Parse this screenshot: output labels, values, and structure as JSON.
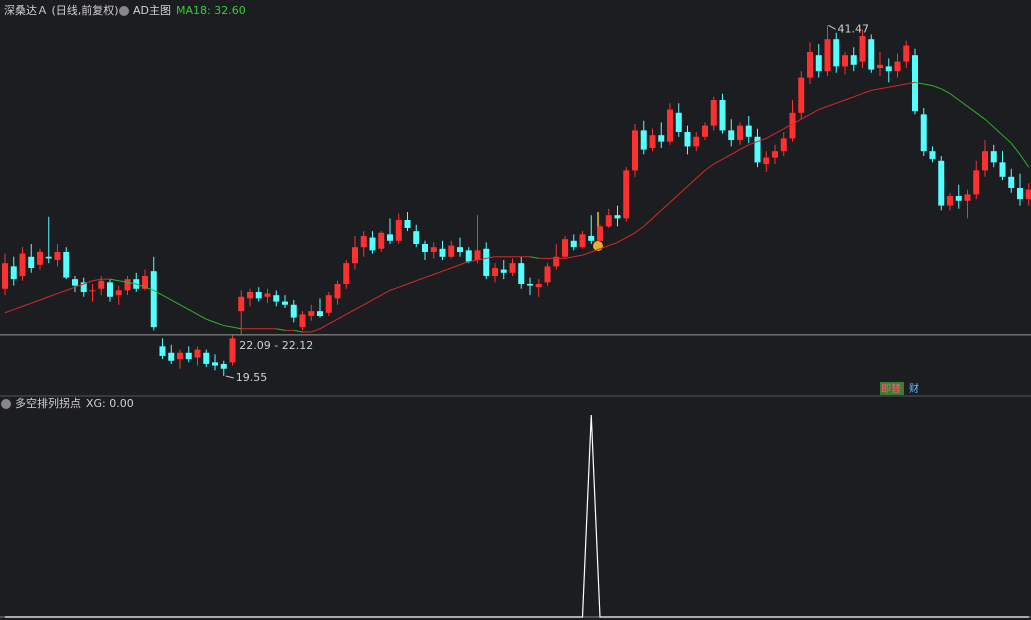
{
  "chart_data": [
    {
      "type": "candlestick",
      "title": "深桑达Ａ (日线,前复权)",
      "indicator": "AD主图",
      "up_color": "#ff3030",
      "down_color": "#54ffff",
      "ylim": [
        18.36,
        41.8
      ],
      "ohlc": [
        [
          25.0,
          27.2,
          24.6,
          26.6
        ],
        [
          26.4,
          27.0,
          25.2,
          25.6
        ],
        [
          25.8,
          27.6,
          25.5,
          27.2
        ],
        [
          27.0,
          27.8,
          26.0,
          26.3
        ],
        [
          26.5,
          27.5,
          26.2,
          27.3
        ],
        [
          27.0,
          29.5,
          26.6,
          26.9
        ],
        [
          26.8,
          27.8,
          26.4,
          27.3
        ],
        [
          27.3,
          27.6,
          25.6,
          25.7
        ],
        [
          25.6,
          25.8,
          24.8,
          25.2
        ],
        [
          25.4,
          25.7,
          24.5,
          24.8
        ],
        [
          24.9,
          25.3,
          24.2,
          24.9
        ],
        [
          25.0,
          25.8,
          24.6,
          25.5
        ],
        [
          25.4,
          25.6,
          24.2,
          24.5
        ],
        [
          24.6,
          25.2,
          24.0,
          24.9
        ],
        [
          24.9,
          25.8,
          24.6,
          25.6
        ],
        [
          25.6,
          26.0,
          24.8,
          25.0
        ],
        [
          25.0,
          26.2,
          24.9,
          25.8
        ],
        [
          26.1,
          27.0,
          22.4,
          22.6
        ],
        [
          21.4,
          21.9,
          20.6,
          20.8
        ],
        [
          21.0,
          21.5,
          20.3,
          20.5
        ],
        [
          20.6,
          21.2,
          20.0,
          21.0
        ],
        [
          21.0,
          21.4,
          20.4,
          20.6
        ],
        [
          20.7,
          21.4,
          20.2,
          21.2
        ],
        [
          21.0,
          21.2,
          20.1,
          20.3
        ],
        [
          20.4,
          20.9,
          19.9,
          20.2
        ],
        [
          20.3,
          20.5,
          19.55,
          20.0
        ],
        [
          20.4,
          22.09,
          20.2,
          21.9
        ],
        [
          23.6,
          24.9,
          22.12,
          24.5
        ],
        [
          24.4,
          25.0,
          23.9,
          24.8
        ],
        [
          24.8,
          25.1,
          24.2,
          24.4
        ],
        [
          24.5,
          25.0,
          24.1,
          24.7
        ],
        [
          24.6,
          24.9,
          23.9,
          24.2
        ],
        [
          24.2,
          24.6,
          23.8,
          24.0
        ],
        [
          24.0,
          24.3,
          22.9,
          23.2
        ],
        [
          22.6,
          23.6,
          22.4,
          23.4
        ],
        [
          23.3,
          24.0,
          23.0,
          23.6
        ],
        [
          23.6,
          24.4,
          23.2,
          23.3
        ],
        [
          23.5,
          24.8,
          23.3,
          24.6
        ],
        [
          24.4,
          25.5,
          24.0,
          25.3
        ],
        [
          25.3,
          26.8,
          25.0,
          26.6
        ],
        [
          26.6,
          28.3,
          26.2,
          27.6
        ],
        [
          27.6,
          28.6,
          27.0,
          28.3
        ],
        [
          28.2,
          28.6,
          27.2,
          27.4
        ],
        [
          27.5,
          28.6,
          27.3,
          28.5
        ],
        [
          28.4,
          29.4,
          27.8,
          28.0
        ],
        [
          28.0,
          29.7,
          27.8,
          29.3
        ],
        [
          29.3,
          29.8,
          28.6,
          28.8
        ],
        [
          28.6,
          29.0,
          27.6,
          27.8
        ],
        [
          27.8,
          28.0,
          26.8,
          27.3
        ],
        [
          27.3,
          27.9,
          26.9,
          27.6
        ],
        [
          27.5,
          28.0,
          26.8,
          27.0
        ],
        [
          27.0,
          28.0,
          26.9,
          27.7
        ],
        [
          27.6,
          28.2,
          27.0,
          27.3
        ],
        [
          27.4,
          27.6,
          26.6,
          26.7
        ],
        [
          26.8,
          29.6,
          26.6,
          27.4
        ],
        [
          27.5,
          27.9,
          25.6,
          25.8
        ],
        [
          25.8,
          26.6,
          25.4,
          26.3
        ],
        [
          26.2,
          26.8,
          25.6,
          26.0
        ],
        [
          26.0,
          26.9,
          25.8,
          26.6
        ],
        [
          26.6,
          27.0,
          25.0,
          25.3
        ],
        [
          25.3,
          25.7,
          24.6,
          25.2
        ],
        [
          25.1,
          25.6,
          24.5,
          25.3
        ],
        [
          25.4,
          26.6,
          25.2,
          26.4
        ],
        [
          26.4,
          27.8,
          26.2,
          27.0
        ],
        [
          27.0,
          28.3,
          26.9,
          28.1
        ],
        [
          28.0,
          28.4,
          27.4,
          27.6
        ],
        [
          27.6,
          28.6,
          27.5,
          28.4
        ],
        [
          28.3,
          29.6,
          27.8,
          28.0
        ],
        [
          28.0,
          29.0,
          27.9,
          28.9
        ],
        [
          28.9,
          30.0,
          28.8,
          29.6
        ],
        [
          29.6,
          30.2,
          28.9,
          29.4
        ],
        [
          29.4,
          32.6,
          29.2,
          32.4
        ],
        [
          32.4,
          35.3,
          32.0,
          34.9
        ],
        [
          34.9,
          35.5,
          33.4,
          33.7
        ],
        [
          33.8,
          35.0,
          33.6,
          34.6
        ],
        [
          34.6,
          35.4,
          33.8,
          34.2
        ],
        [
          34.2,
          36.6,
          34.0,
          36.2
        ],
        [
          36.0,
          36.6,
          34.5,
          34.8
        ],
        [
          34.8,
          35.2,
          33.4,
          33.9
        ],
        [
          33.9,
          34.8,
          33.6,
          34.5
        ],
        [
          34.5,
          35.4,
          34.3,
          35.2
        ],
        [
          35.2,
          37.0,
          34.9,
          36.8
        ],
        [
          36.8,
          37.2,
          34.7,
          34.9
        ],
        [
          34.9,
          35.6,
          33.9,
          34.3
        ],
        [
          34.3,
          35.4,
          34.0,
          35.2
        ],
        [
          35.2,
          35.8,
          34.1,
          34.5
        ],
        [
          34.5,
          35.0,
          32.6,
          32.9
        ],
        [
          32.8,
          33.6,
          32.3,
          33.2
        ],
        [
          33.2,
          34.0,
          32.8,
          33.6
        ],
        [
          33.6,
          34.8,
          33.3,
          34.4
        ],
        [
          34.4,
          36.8,
          34.2,
          36.0
        ],
        [
          36.0,
          38.6,
          35.6,
          38.2
        ],
        [
          38.2,
          40.4,
          37.8,
          39.8
        ],
        [
          39.6,
          40.3,
          38.2,
          38.6
        ],
        [
          38.6,
          41.47,
          38.3,
          40.6
        ],
        [
          40.6,
          41.0,
          38.5,
          38.9
        ],
        [
          38.9,
          39.8,
          38.4,
          39.6
        ],
        [
          39.6,
          40.1,
          38.6,
          39.0
        ],
        [
          39.2,
          41.2,
          38.8,
          40.8
        ],
        [
          40.6,
          40.9,
          38.5,
          38.7
        ],
        [
          38.8,
          39.8,
          38.3,
          39.0
        ],
        [
          38.9,
          39.4,
          37.9,
          38.6
        ],
        [
          38.6,
          39.7,
          38.2,
          39.2
        ],
        [
          39.2,
          40.5,
          38.8,
          40.2
        ],
        [
          39.6,
          40.0,
          35.9,
          36.1
        ],
        [
          35.9,
          36.3,
          33.3,
          33.6
        ],
        [
          33.6,
          33.9,
          32.9,
          33.1
        ],
        [
          33.0,
          33.3,
          29.9,
          30.2
        ],
        [
          30.2,
          31.0,
          29.9,
          30.8
        ],
        [
          30.8,
          31.5,
          30.0,
          30.5
        ],
        [
          30.5,
          31.2,
          29.4,
          30.9
        ],
        [
          30.9,
          33.0,
          30.6,
          32.4
        ],
        [
          32.4,
          34.3,
          32.0,
          33.6
        ],
        [
          33.6,
          34.0,
          32.6,
          32.9
        ],
        [
          32.9,
          33.6,
          31.8,
          32.0
        ],
        [
          32.0,
          32.5,
          31.0,
          31.3
        ],
        [
          31.3,
          32.2,
          30.2,
          30.6
        ],
        [
          30.6,
          31.6,
          30.2,
          31.2
        ]
      ],
      "ma": {
        "legend": "MA18: 32.60",
        "up_color": "#d42a2a",
        "down_color": "#2bb52b",
        "values": [
          23.5,
          23.7,
          23.9,
          24.1,
          24.3,
          24.5,
          24.7,
          24.9,
          25.1,
          25.3,
          25.5,
          25.6,
          25.6,
          25.5,
          25.4,
          25.3,
          25.1,
          24.9,
          24.6,
          24.3,
          24.0,
          23.7,
          23.4,
          23.1,
          22.9,
          22.7,
          22.6,
          22.5,
          22.5,
          22.5,
          22.5,
          22.5,
          22.4,
          22.4,
          22.3,
          22.3,
          22.5,
          22.8,
          23.1,
          23.4,
          23.7,
          24.0,
          24.3,
          24.6,
          24.9,
          25.1,
          25.3,
          25.5,
          25.7,
          25.9,
          26.1,
          26.3,
          26.5,
          26.7,
          26.8,
          26.9,
          27.0,
          27.0,
          27.0,
          27.0,
          27.0,
          26.9,
          26.9,
          26.9,
          26.9,
          27.0,
          27.1,
          27.3,
          27.5,
          27.7,
          27.9,
          28.2,
          28.5,
          28.9,
          29.4,
          29.9,
          30.4,
          30.9,
          31.4,
          31.9,
          32.4,
          32.8,
          33.1,
          33.4,
          33.7,
          34.0,
          34.2,
          34.4,
          34.7,
          35.0,
          35.3,
          35.6,
          35.9,
          36.2,
          36.4,
          36.6,
          36.8,
          37.0,
          37.2,
          37.4,
          37.5,
          37.6,
          37.7,
          37.8,
          37.9,
          37.8,
          37.7,
          37.5,
          37.2,
          36.8,
          36.4,
          36.0,
          35.6,
          35.1,
          34.6,
          34.1,
          33.4,
          32.6
        ]
      },
      "gap_label": "22.09 - 22.12",
      "badges": [
        "即替",
        "财"
      ]
    },
    {
      "type": "line",
      "title": "多空排列拐点",
      "legend": "XG: 0.00",
      "color": "#ffffff",
      "ylim": [
        0,
        1
      ],
      "values": [
        0,
        0,
        0,
        0,
        0,
        0,
        0,
        0,
        0,
        0,
        0,
        0,
        0,
        0,
        0,
        0,
        0,
        0,
        0,
        0,
        0,
        0,
        0,
        0,
        0,
        0,
        0,
        0,
        0,
        0,
        0,
        0,
        0,
        0,
        0,
        0,
        0,
        0,
        0,
        0,
        0,
        0,
        0,
        0,
        0,
        0,
        0,
        0,
        0,
        0,
        0,
        0,
        0,
        0,
        0,
        0,
        0,
        0,
        0,
        0,
        0,
        0,
        0,
        0,
        0,
        0,
        0,
        1,
        0,
        0,
        0,
        0,
        0,
        0,
        0,
        0,
        0,
        0,
        0,
        0,
        0,
        0,
        0,
        0,
        0,
        0,
        0,
        0,
        0,
        0,
        0,
        0,
        0,
        0,
        0,
        0,
        0,
        0,
        0,
        0,
        0,
        0,
        0,
        0,
        0,
        0,
        0,
        0,
        0,
        0,
        0,
        0,
        0,
        0,
        0,
        0,
        0,
        0
      ]
    }
  ]
}
